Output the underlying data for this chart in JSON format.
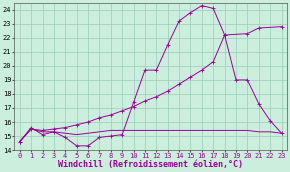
{
  "xlabel": "Windchill (Refroidissement éolien,°C)",
  "bg_color": "#cceedd",
  "line_color": "#990099",
  "grid_color": "#99ccbb",
  "line1_x": [
    0,
    1,
    2,
    3,
    4,
    5,
    6,
    7,
    8,
    9,
    10,
    11,
    12,
    13,
    14,
    15,
    16,
    17,
    18,
    19,
    20,
    21,
    22,
    23
  ],
  "line1_y": [
    14.6,
    15.6,
    15.1,
    15.3,
    14.9,
    14.3,
    14.3,
    14.9,
    15.0,
    15.1,
    17.4,
    19.7,
    19.7,
    21.5,
    23.2,
    23.8,
    24.3,
    24.1,
    22.2,
    19.0,
    19.0,
    17.3,
    16.1,
    15.2
  ],
  "line2_x": [
    0,
    1,
    2,
    3,
    4,
    5,
    6,
    7,
    8,
    9,
    10,
    11,
    12,
    13,
    14,
    15,
    16,
    17,
    18,
    20,
    21,
    23
  ],
  "line2_y": [
    14.6,
    15.5,
    15.4,
    15.5,
    15.6,
    15.8,
    16.0,
    16.3,
    16.5,
    16.8,
    17.1,
    17.5,
    17.8,
    18.2,
    18.7,
    19.2,
    19.7,
    20.3,
    22.2,
    22.3,
    22.7,
    22.8
  ],
  "line3_x": [
    0,
    1,
    2,
    3,
    4,
    5,
    6,
    7,
    8,
    9,
    10,
    11,
    12,
    13,
    14,
    15,
    16,
    17,
    18,
    19,
    20,
    21,
    22,
    23
  ],
  "line3_y": [
    14.6,
    15.5,
    15.3,
    15.3,
    15.2,
    15.1,
    15.2,
    15.3,
    15.4,
    15.4,
    15.4,
    15.4,
    15.4,
    15.4,
    15.4,
    15.4,
    15.4,
    15.4,
    15.4,
    15.4,
    15.4,
    15.3,
    15.3,
    15.2
  ],
  "xlim": [
    -0.5,
    23.5
  ],
  "ylim": [
    14.0,
    24.5
  ],
  "xticks": [
    0,
    1,
    2,
    3,
    4,
    5,
    6,
    7,
    8,
    9,
    10,
    11,
    12,
    13,
    14,
    15,
    16,
    17,
    18,
    19,
    20,
    21,
    22,
    23
  ],
  "yticks": [
    14,
    15,
    16,
    17,
    18,
    19,
    20,
    21,
    22,
    23,
    24
  ],
  "tick_fontsize": 5.0,
  "xlabel_fontsize": 6.0,
  "linewidth": 0.7,
  "markersize": 1.8
}
